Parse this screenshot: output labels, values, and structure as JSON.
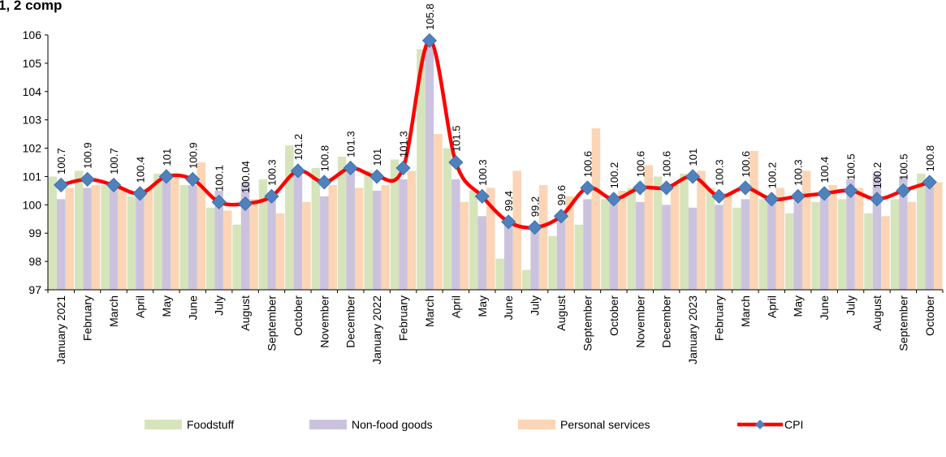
{
  "title_fragment": "1, 2  comp",
  "chart_data": {
    "type": "bar",
    "categories": [
      "January 2021",
      "February",
      "March",
      "April",
      "May",
      "June",
      "July",
      "August",
      "September",
      "October",
      "November",
      "December",
      "January 2022",
      "February",
      "March",
      "April",
      "May",
      "June",
      "July",
      "August",
      "September",
      "October",
      "November",
      "December",
      "January 2023",
      "February",
      "March",
      "April",
      "May",
      "June",
      "July",
      "August",
      "September",
      "October"
    ],
    "ylim": [
      97,
      106
    ],
    "yticks": [
      97,
      98,
      99,
      100,
      101,
      102,
      103,
      104,
      105,
      106
    ],
    "grid": false,
    "legend_position": "bottom",
    "series": [
      {
        "name": "Foodstuff",
        "kind": "bar",
        "color": "#d6e4bc",
        "values": [
          101.0,
          101.2,
          100.7,
          100.3,
          101.1,
          100.7,
          99.9,
          99.3,
          100.9,
          102.1,
          101.3,
          101.7,
          101.2,
          101.6,
          105.5,
          102.0,
          100.5,
          98.1,
          97.7,
          98.9,
          99.3,
          100.2,
          100.6,
          101.0,
          101.1,
          100.6,
          99.9,
          100.2,
          99.7,
          100.1,
          100.2,
          99.7,
          100.2,
          101.1
        ]
      },
      {
        "name": "Non-food goods",
        "kind": "bar",
        "color": "#cbc3de",
        "values": [
          100.2,
          100.6,
          100.6,
          100.3,
          100.9,
          100.7,
          100.5,
          100.8,
          100.3,
          101.1,
          100.3,
          101.2,
          100.5,
          100.9,
          105.9,
          100.9,
          99.6,
          99.3,
          99.3,
          99.6,
          100.2,
          100.2,
          100.1,
          100.0,
          99.9,
          100.0,
          100.2,
          100.3,
          100.3,
          100.3,
          100.9,
          101.1,
          101.0,
          100.9
        ]
      },
      {
        "name": "Personal services",
        "kind": "bar",
        "color": "#fbd5b5",
        "values": [
          100.6,
          100.7,
          100.6,
          100.6,
          101.0,
          101.5,
          99.8,
          100.2,
          99.7,
          100.1,
          100.7,
          100.6,
          100.7,
          101.2,
          102.5,
          100.1,
          100.6,
          101.2,
          100.7,
          100.3,
          102.7,
          100.5,
          101.4,
          100.7,
          101.2,
          100.4,
          101.9,
          100.6,
          101.2,
          100.7,
          100.6,
          99.6,
          100.1,
          100.8
        ]
      },
      {
        "name": "CPI",
        "kind": "line",
        "color": "#ff0000",
        "marker_color": "#4f81bd",
        "values": [
          100.7,
          100.9,
          100.7,
          100.4,
          101,
          100.9,
          100.1,
          100.04,
          100.3,
          101.2,
          100.8,
          101.3,
          101,
          101.3,
          105.8,
          101.5,
          100.3,
          99.4,
          99.2,
          99.6,
          100.6,
          100.2,
          100.6,
          100.6,
          101,
          100.3,
          100.6,
          100.2,
          100.3,
          100.4,
          100.5,
          100.2,
          100.5,
          100.8
        ],
        "labels": [
          "100.7",
          "100.9",
          "100.7",
          "100.4",
          "101",
          "100.9",
          "100.1",
          "100.04",
          "100.3",
          "101.2",
          "100.8",
          "101.3",
          "101",
          "101.3",
          "105.8",
          "101.5",
          "100.3",
          "99.4",
          "99.2",
          "99.6",
          "100.6",
          "100.2",
          "100.6",
          "100.6",
          "101",
          "100.3",
          "100.6",
          "100.2",
          "100.3",
          "100.4",
          "100.5",
          "100.2",
          "100.5",
          "100.8"
        ]
      }
    ]
  }
}
